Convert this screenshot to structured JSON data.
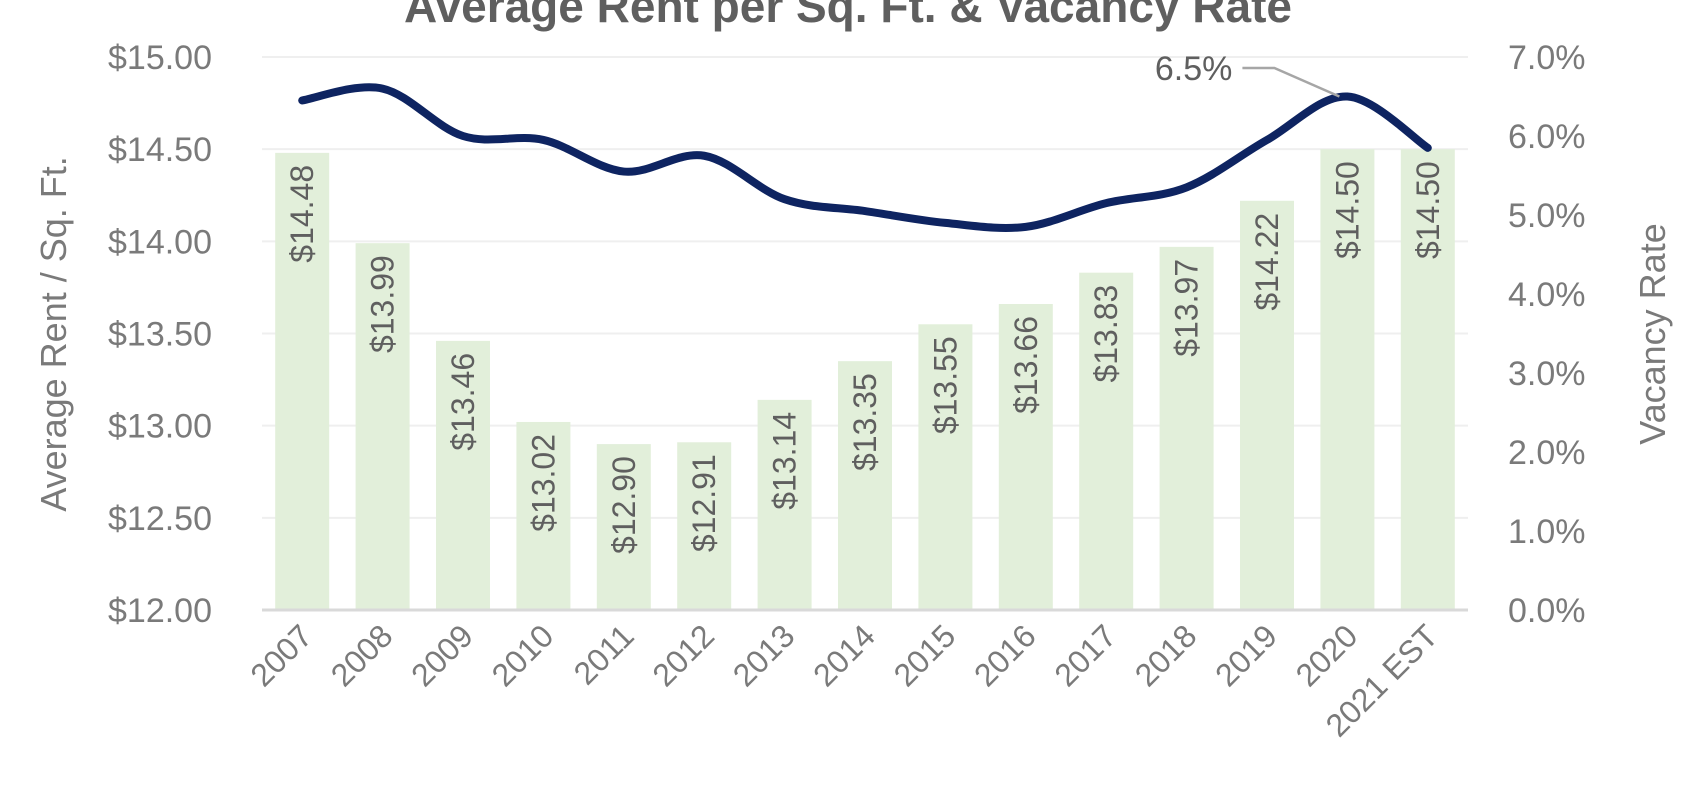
{
  "chart_data": {
    "type": "bar",
    "title": "Average Rent per Sq. Ft. & Vacancy Rate",
    "categories": [
      "2007",
      "2008",
      "2009",
      "2010",
      "2011",
      "2012",
      "2013",
      "2014",
      "2015",
      "2016",
      "2017",
      "2018",
      "2019",
      "2020",
      "2021 EST"
    ],
    "series": [
      {
        "name": "Average Rent / Sq. Ft.",
        "kind": "bar",
        "axis": "left",
        "values": [
          14.48,
          13.99,
          13.46,
          13.02,
          12.9,
          12.91,
          13.14,
          13.35,
          13.55,
          13.66,
          13.83,
          13.97,
          14.22,
          14.5,
          14.5
        ],
        "labels": [
          "$14.48",
          "$13.99",
          "$13.46",
          "$13.02",
          "$12.90",
          "$12.91",
          "$13.14",
          "$13.35",
          "$13.55",
          "$13.66",
          "$13.83",
          "$13.97",
          "$14.22",
          "$14.50",
          "$14.50"
        ],
        "color": "#e2efda"
      },
      {
        "name": "Vacancy Rate",
        "kind": "line",
        "axis": "right",
        "values": [
          6.45,
          6.6,
          6.0,
          5.95,
          5.55,
          5.75,
          5.2,
          5.05,
          4.9,
          4.85,
          5.15,
          5.35,
          5.95,
          6.5,
          5.85
        ],
        "color": "#0e2461"
      }
    ],
    "left_axis": {
      "label": "Average Rent / Sq. Ft.",
      "ylim": [
        12.0,
        15.0
      ],
      "ticks": [
        12.0,
        12.5,
        13.0,
        13.5,
        14.0,
        14.5,
        15.0
      ],
      "tick_labels": [
        "$12.00",
        "$12.50",
        "$13.00",
        "$13.50",
        "$14.00",
        "$14.50",
        "$15.00"
      ]
    },
    "right_axis": {
      "label": "Vacancy Rate",
      "ylim": [
        0.0,
        7.0
      ],
      "ticks": [
        0,
        1,
        2,
        3,
        4,
        5,
        6,
        7
      ],
      "tick_labels": [
        "0.0%",
        "1.0%",
        "2.0%",
        "3.0%",
        "4.0%",
        "5.0%",
        "6.0%",
        "7.0%"
      ]
    },
    "annotations": [
      {
        "category": "2020",
        "series": "Vacancy Rate",
        "value": 6.5,
        "label": "6.5%"
      }
    ],
    "grid": true,
    "colors": {
      "gridline": "#efefef",
      "baseline": "#d9d9d9",
      "leader": "#a6a6a6"
    }
  }
}
